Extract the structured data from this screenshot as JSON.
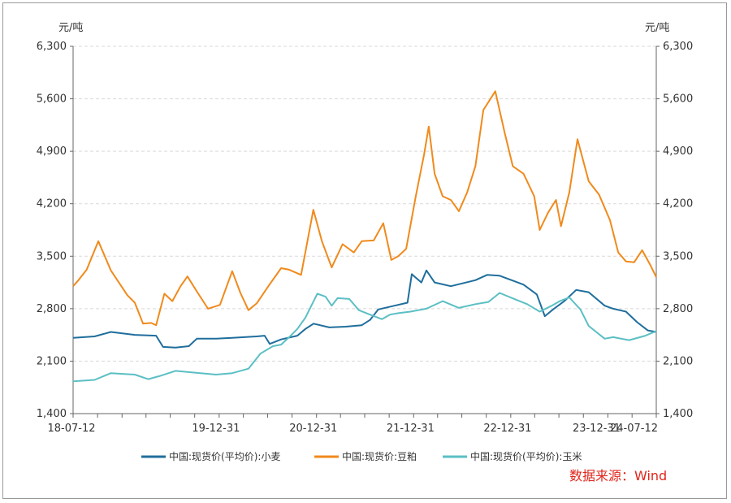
{
  "chart_data": {
    "type": "line",
    "left_unit": "元/吨",
    "right_unit": "元/吨",
    "ylim": [
      1400,
      6300
    ],
    "y_ticks": [
      "6,300",
      "5,600",
      "4,900",
      "4,200",
      "3,500",
      "2,800",
      "2,100",
      "1,400"
    ],
    "x_range": [
      "2018-07-12",
      "2024-07-12"
    ],
    "x_ticks": [
      {
        "date": "2018-07-12",
        "label": "18-07-12"
      },
      {
        "date": "2019-12-31",
        "label": "19-12-31"
      },
      {
        "date": "2020-12-31",
        "label": "20-12-31"
      },
      {
        "date": "2021-12-31",
        "label": "21-12-31"
      },
      {
        "date": "2022-12-31",
        "label": "22-12-31"
      },
      {
        "date": "2023-12-31",
        "label": "23-12-31"
      },
      {
        "date": "2024-07-12",
        "label": "24-07-12"
      }
    ],
    "grid": "horizontal dashed",
    "legend_position": "bottom",
    "source": "数据来源：Wind",
    "series": [
      {
        "name": "中国:现货价(平均价):小麦",
        "color": "#1f6e9c",
        "points": [
          [
            "2018-07-12",
            2410
          ],
          [
            "2018-10-01",
            2430
          ],
          [
            "2018-12-01",
            2490
          ],
          [
            "2019-03-01",
            2450
          ],
          [
            "2019-05-20",
            2440
          ],
          [
            "2019-06-15",
            2290
          ],
          [
            "2019-08-01",
            2280
          ],
          [
            "2019-09-20",
            2300
          ],
          [
            "2019-10-20",
            2400
          ],
          [
            "2020-01-01",
            2400
          ],
          [
            "2020-03-01",
            2410
          ],
          [
            "2020-06-01",
            2430
          ],
          [
            "2020-07-01",
            2440
          ],
          [
            "2020-07-20",
            2330
          ],
          [
            "2020-09-01",
            2390
          ],
          [
            "2020-11-01",
            2440
          ],
          [
            "2020-12-01",
            2530
          ],
          [
            "2021-01-01",
            2600
          ],
          [
            "2021-03-01",
            2550
          ],
          [
            "2021-05-01",
            2560
          ],
          [
            "2021-07-01",
            2580
          ],
          [
            "2021-08-01",
            2650
          ],
          [
            "2021-09-01",
            2790
          ],
          [
            "2021-11-01",
            2840
          ],
          [
            "2021-12-20",
            2880
          ],
          [
            "2022-01-05",
            3260
          ],
          [
            "2022-02-10",
            3150
          ],
          [
            "2022-03-01",
            3310
          ],
          [
            "2022-04-01",
            3150
          ],
          [
            "2022-06-01",
            3100
          ],
          [
            "2022-09-01",
            3180
          ],
          [
            "2022-10-15",
            3250
          ],
          [
            "2022-12-01",
            3240
          ],
          [
            "2023-03-01",
            3120
          ],
          [
            "2023-04-20",
            2990
          ],
          [
            "2023-05-20",
            2700
          ],
          [
            "2023-06-20",
            2790
          ],
          [
            "2023-08-01",
            2900
          ],
          [
            "2023-09-15",
            3050
          ],
          [
            "2023-11-01",
            3020
          ],
          [
            "2023-12-31",
            2840
          ],
          [
            "2024-02-01",
            2800
          ],
          [
            "2024-03-20",
            2760
          ],
          [
            "2024-05-01",
            2620
          ],
          [
            "2024-06-10",
            2510
          ],
          [
            "2024-07-12",
            2490
          ]
        ]
      },
      {
        "name": "中国:现货价:豆粕",
        "color": "#f08a1c",
        "points": [
          [
            "2018-07-12",
            3100
          ],
          [
            "2018-08-01",
            3180
          ],
          [
            "2018-09-01",
            3320
          ],
          [
            "2018-10-15",
            3700
          ],
          [
            "2018-12-01",
            3310
          ],
          [
            "2019-02-01",
            2980
          ],
          [
            "2019-03-01",
            2880
          ],
          [
            "2019-04-01",
            2600
          ],
          [
            "2019-05-01",
            2610
          ],
          [
            "2019-05-20",
            2580
          ],
          [
            "2019-06-20",
            3000
          ],
          [
            "2019-07-20",
            2900
          ],
          [
            "2019-08-20",
            3100
          ],
          [
            "2019-09-15",
            3230
          ],
          [
            "2019-10-20",
            3030
          ],
          [
            "2019-12-01",
            2800
          ],
          [
            "2020-01-15",
            2850
          ],
          [
            "2020-03-01",
            3300
          ],
          [
            "2020-04-01",
            3010
          ],
          [
            "2020-05-01",
            2780
          ],
          [
            "2020-06-01",
            2870
          ],
          [
            "2020-07-15",
            3100
          ],
          [
            "2020-09-01",
            3340
          ],
          [
            "2020-10-01",
            3320
          ],
          [
            "2020-11-15",
            3250
          ],
          [
            "2020-12-31",
            4120
          ],
          [
            "2021-02-01",
            3700
          ],
          [
            "2021-03-10",
            3350
          ],
          [
            "2021-04-20",
            3660
          ],
          [
            "2021-06-01",
            3550
          ],
          [
            "2021-07-01",
            3700
          ],
          [
            "2021-08-15",
            3710
          ],
          [
            "2021-09-20",
            3940
          ],
          [
            "2021-10-20",
            3450
          ],
          [
            "2021-11-15",
            3500
          ],
          [
            "2021-12-15",
            3600
          ],
          [
            "2022-01-20",
            4300
          ],
          [
            "2022-02-20",
            4850
          ],
          [
            "2022-03-10",
            5230
          ],
          [
            "2022-04-01",
            4600
          ],
          [
            "2022-05-01",
            4300
          ],
          [
            "2022-06-01",
            4250
          ],
          [
            "2022-07-01",
            4100
          ],
          [
            "2022-08-01",
            4350
          ],
          [
            "2022-09-01",
            4700
          ],
          [
            "2022-10-01",
            5450
          ],
          [
            "2022-11-15",
            5700
          ],
          [
            "2022-12-20",
            5150
          ],
          [
            "2023-01-20",
            4700
          ],
          [
            "2023-03-01",
            4600
          ],
          [
            "2023-04-10",
            4300
          ],
          [
            "2023-05-01",
            3850
          ],
          [
            "2023-06-01",
            4080
          ],
          [
            "2023-07-01",
            4250
          ],
          [
            "2023-07-20",
            3900
          ],
          [
            "2023-08-20",
            4350
          ],
          [
            "2023-09-20",
            5060
          ],
          [
            "2023-11-01",
            4500
          ],
          [
            "2023-12-10",
            4320
          ],
          [
            "2024-01-20",
            3980
          ],
          [
            "2024-02-20",
            3550
          ],
          [
            "2024-03-20",
            3430
          ],
          [
            "2024-04-20",
            3420
          ],
          [
            "2024-05-20",
            3580
          ],
          [
            "2024-06-20",
            3380
          ],
          [
            "2024-07-12",
            3220
          ]
        ]
      },
      {
        "name": "中国:现货价(平均价):玉米",
        "color": "#5bbfc4",
        "points": [
          [
            "2018-07-12",
            1830
          ],
          [
            "2018-10-01",
            1850
          ],
          [
            "2018-12-01",
            1940
          ],
          [
            "2019-03-01",
            1920
          ],
          [
            "2019-04-20",
            1860
          ],
          [
            "2019-06-01",
            1900
          ],
          [
            "2019-08-01",
            1970
          ],
          [
            "2019-10-01",
            1950
          ],
          [
            "2019-12-31",
            1920
          ],
          [
            "2020-03-01",
            1940
          ],
          [
            "2020-05-01",
            2000
          ],
          [
            "2020-06-15",
            2200
          ],
          [
            "2020-08-01",
            2300
          ],
          [
            "2020-09-01",
            2320
          ],
          [
            "2020-10-01",
            2420
          ],
          [
            "2020-11-01",
            2530
          ],
          [
            "2020-12-01",
            2680
          ],
          [
            "2021-01-15",
            3000
          ],
          [
            "2021-02-15",
            2960
          ],
          [
            "2021-03-10",
            2840
          ],
          [
            "2021-04-01",
            2940
          ],
          [
            "2021-05-15",
            2930
          ],
          [
            "2021-06-20",
            2780
          ],
          [
            "2021-08-01",
            2720
          ],
          [
            "2021-09-15",
            2660
          ],
          [
            "2021-10-15",
            2720
          ],
          [
            "2021-11-15",
            2740
          ],
          [
            "2021-12-31",
            2760
          ],
          [
            "2022-03-01",
            2800
          ],
          [
            "2022-05-01",
            2900
          ],
          [
            "2022-07-01",
            2810
          ],
          [
            "2022-09-01",
            2860
          ],
          [
            "2022-10-20",
            2890
          ],
          [
            "2022-12-01",
            3010
          ],
          [
            "2023-02-01",
            2920
          ],
          [
            "2023-03-15",
            2860
          ],
          [
            "2023-05-01",
            2760
          ],
          [
            "2023-06-15",
            2840
          ],
          [
            "2023-07-15",
            2900
          ],
          [
            "2023-08-20",
            2950
          ],
          [
            "2023-10-01",
            2790
          ],
          [
            "2023-11-01",
            2570
          ],
          [
            "2023-12-31",
            2400
          ],
          [
            "2024-02-01",
            2420
          ],
          [
            "2024-04-01",
            2380
          ],
          [
            "2024-06-01",
            2440
          ],
          [
            "2024-07-12",
            2500
          ]
        ]
      }
    ]
  }
}
